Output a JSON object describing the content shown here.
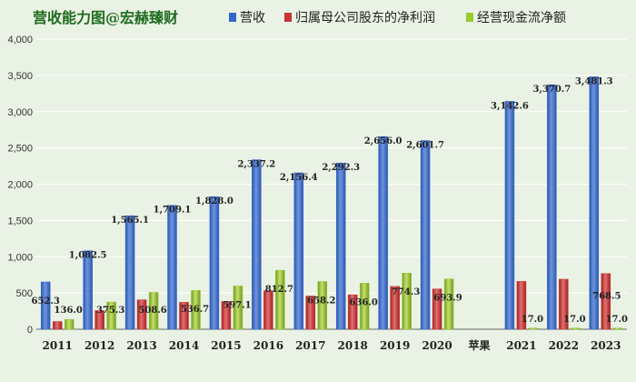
{
  "chart_data": {
    "type": "bar",
    "title": "营收能力图@宏赫臻财",
    "categories": [
      "2011",
      "2012",
      "2013",
      "2014",
      "2015",
      "2016",
      "2017",
      "2018",
      "2019",
      "2020",
      "苹果",
      "2021",
      "2022",
      "2023"
    ],
    "series": [
      {
        "name": "营收",
        "color": "#3366cc",
        "values": [
          652.3,
          1082.5,
          1565.1,
          1709.1,
          1828.0,
          2337.2,
          2156.4,
          2292.3,
          2656.0,
          2601.7,
          null,
          3142.6,
          3370.7,
          3481.3
        ],
        "labels": [
          "652.3",
          "1,082.5",
          "1,565.1",
          "1,709.1",
          "1,828.0",
          "2,337.2",
          "2,156.4",
          "2,292.3",
          "2,656.0",
          "2,601.7",
          "",
          "3,142.6",
          "3,370.7",
          "3,481.3"
        ]
      },
      {
        "name": "归属母公司股东的净利润",
        "color": "#cc3333",
        "values": [
          106.4,
          258.0,
          406.0,
          371.0,
          383.0,
          531.0,
          458.0,
          475.0,
          591.0,
          556.0,
          null,
          660.0,
          690.0,
          768.5
        ],
        "labels": [
          "",
          "",
          "",
          "",
          "",
          "",
          "",
          "",
          "",
          "",
          "",
          "",
          "",
          "768.5"
        ]
      },
      {
        "name": "经营现金流净额",
        "color": "#99cc33",
        "values": [
          136.0,
          375.3,
          508.6,
          536.7,
          597.1,
          812.7,
          658.2,
          636.0,
          774.3,
          693.9,
          null,
          17.0,
          17.0,
          17.0
        ],
        "labels": [
          "136.0",
          "375.3",
          "508.6",
          "536.7",
          "597.1",
          "812.7",
          "658.2",
          "636.0",
          "774.3",
          "693.9",
          "",
          "17.0",
          "17.0",
          "17.0"
        ]
      }
    ],
    "ylim": [
      0,
      4000
    ],
    "yticks": [
      "0",
      "500",
      "1,000",
      "1,500",
      "2,000",
      "2,500",
      "3,000",
      "3,500",
      "4,000"
    ],
    "ytick_values": [
      0,
      500,
      1000,
      1500,
      2000,
      2500,
      3000,
      3500,
      4000
    ],
    "legend_position": "top"
  }
}
